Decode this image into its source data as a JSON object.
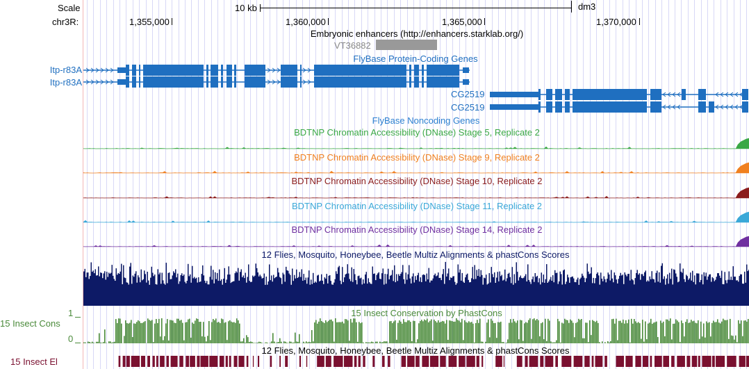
{
  "ruler": {
    "scale_label": "Scale",
    "scale_value": "10 kb",
    "assembly": "dm3",
    "chrom_label": "chr3R:",
    "positions": [
      "1,355,000",
      "1,360,000",
      "1,365,000",
      "1,370,000"
    ]
  },
  "tracks": {
    "enhancers": {
      "title": "Embryonic enhancers (http://enhancers.starklab.org/)",
      "item": "VT36882",
      "color": "#999999"
    },
    "protein_genes": {
      "title": "FlyBase Protein-Coding Genes",
      "color": "#1f6fc0",
      "genes": [
        "Itp-r83A",
        "Itp-r83A",
        "CG2519",
        "CG2519"
      ]
    },
    "noncoding": {
      "title": "FlyBase Noncoding Genes",
      "color": "#2b7fd0"
    },
    "dnase": [
      {
        "title": "BDTNP Chromatin Accessibility (DNase) Stage 5, Replicate 2",
        "color": "#3aa845"
      },
      {
        "title": "BDTNP Chromatin Accessibility (DNase) Stage 9, Replicate 2",
        "color": "#f08020"
      },
      {
        "title": "BDTNP Chromatin Accessibility (DNase) Stage 10, Replicate 2",
        "color": "#8b1c1c"
      },
      {
        "title": "BDTNP Chromatin Accessibility (DNase) Stage 11, Replicate 2",
        "color": "#3aa8d8"
      },
      {
        "title": "BDTNP Chromatin Accessibility (DNase) Stage 14, Replicate 2",
        "color": "#7030a0"
      }
    ],
    "multiz": {
      "title": "12 Flies, Mosquito, Honeybee, Beetle Multiz Alignments & phastCons Scores",
      "color": "#0d1a66"
    },
    "phastcons": {
      "title": "15 Insect Conservation by PhastCons",
      "label": "15 Insect Cons",
      "ymax": "1",
      "ymin": "0",
      "color": "#4a8a3a"
    },
    "elements": {
      "title": "12 Flies, Mosquito, Honeybee, Beetle Multiz Alignments & phastCons Scores",
      "label": "15 Insect El",
      "color": "#7a1030"
    }
  }
}
